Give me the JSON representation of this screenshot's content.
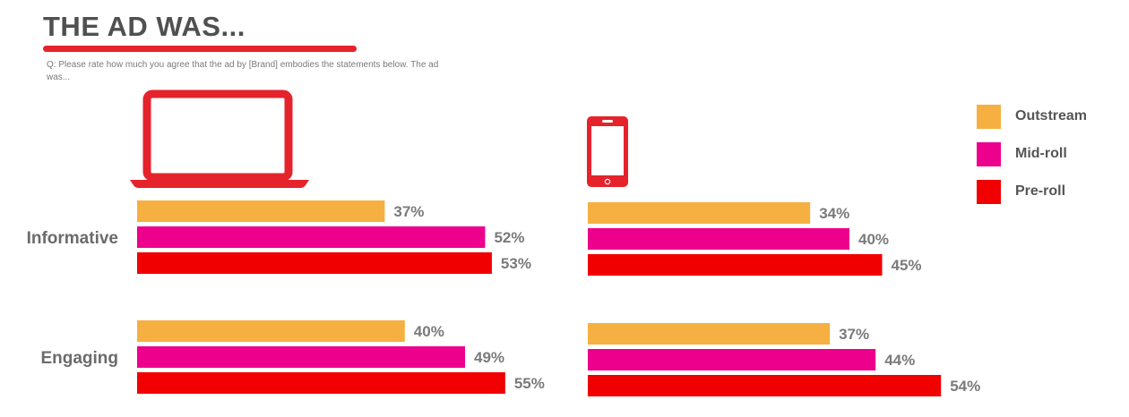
{
  "header": {
    "title": "THE AD WAS...",
    "question": "Q: Please rate how much you agree that the ad by [Brand] embodies the statements below. The ad was..."
  },
  "icons": {
    "desktop": "laptop-icon",
    "mobile": "smartphone-icon"
  },
  "colors": {
    "accent": "#e5232b",
    "Outstream": "#f5b041",
    "Mid-roll": "#ec008c",
    "Pre-roll": "#f00000",
    "category_text": "#6b6b6b",
    "value_text": "#7a7a7a"
  },
  "legend": [
    {
      "label": "Outstream",
      "color": "#f5b041"
    },
    {
      "label": "Mid-roll",
      "color": "#ec008c"
    },
    {
      "label": "Pre-roll",
      "color": "#f00000"
    }
  ],
  "chart_data": [
    {
      "type": "bar",
      "orientation": "horizontal",
      "device": "desktop",
      "categories": [
        "Informative",
        "Engaging"
      ],
      "series": [
        {
          "name": "Outstream",
          "values": [
            37,
            40
          ],
          "labels": [
            "37%",
            "40%"
          ]
        },
        {
          "name": "Mid-roll",
          "values": [
            52,
            49
          ],
          "labels": [
            "52%",
            "49%"
          ]
        },
        {
          "name": "Pre-roll",
          "values": [
            53,
            55
          ],
          "labels": [
            "53%",
            "55%"
          ]
        }
      ],
      "unit": "%",
      "xlim": [
        0,
        100
      ],
      "grid": false,
      "legend_position": "right"
    },
    {
      "type": "bar",
      "orientation": "horizontal",
      "device": "mobile",
      "categories": [
        "Informative",
        "Engaging"
      ],
      "series": [
        {
          "name": "Outstream",
          "values": [
            34,
            37
          ],
          "labels": [
            "34%",
            "37%"
          ]
        },
        {
          "name": "Mid-roll",
          "values": [
            40,
            44
          ],
          "labels": [
            "40%",
            "44%"
          ]
        },
        {
          "name": "Pre-roll",
          "values": [
            45,
            54
          ],
          "labels": [
            "45%",
            "54%"
          ]
        }
      ],
      "unit": "%",
      "xlim": [
        0,
        100
      ],
      "grid": false,
      "legend_position": "right"
    }
  ]
}
